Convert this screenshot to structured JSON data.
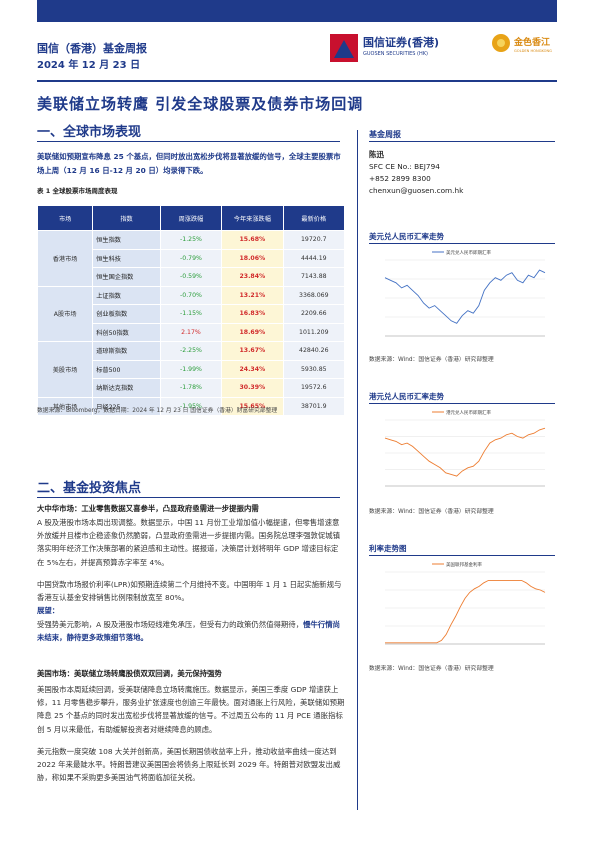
{
  "header": {
    "report_name": "国信（香港）基金周报",
    "date": "2024 年 12 月 23 日",
    "logo_cn": "国信证券(香港)",
    "logo_en": "GUOSEN SECURITIES (HK)",
    "logo2_cn": "金色香江",
    "logo2_en": "GOLDEN HONGKONG"
  },
  "title": "美联储立场转鹰 引发全球股票及债券市场回调",
  "section1": {
    "heading": "一、全球市场表现",
    "summary": "美联储如预期宣布降息 25 个基点，但同时放出宽松步伐将显著放缓的信号，全球主要股票市场上周（12 月 16 日-12 月 20 日）均录得下跌。",
    "table_caption": "表 1   全球股票市场周度表现",
    "table_headers": [
      "市场",
      "指数",
      "周涨跌幅",
      "今年来涨跌幅",
      "最新价格"
    ],
    "groups": [
      {
        "market": "香港市场",
        "rows": [
          {
            "index": "恒生指数",
            "week": "-1.25%",
            "ytd": "15.68%",
            "price": "19720.7"
          },
          {
            "index": "恒生科技",
            "week": "-0.79%",
            "ytd": "18.06%",
            "price": "4444.19"
          },
          {
            "index": "恒生国企指数",
            "week": "-0.59%",
            "ytd": "23.84%",
            "price": "7143.88"
          }
        ]
      },
      {
        "market": "A股市场",
        "rows": [
          {
            "index": "上证指数",
            "week": "-0.70%",
            "ytd": "13.21%",
            "price": "3368.069"
          },
          {
            "index": "创业板指数",
            "week": "-1.15%",
            "ytd": "16.83%",
            "price": "2209.66"
          },
          {
            "index": "科创50指数",
            "week": "2.17%",
            "ytd": "18.69%",
            "price": "1011.209"
          }
        ]
      },
      {
        "market": "美股市场",
        "rows": [
          {
            "index": "道琼斯指数",
            "week": "-2.25%",
            "ytd": "13.67%",
            "price": "42840.26"
          },
          {
            "index": "标普500",
            "week": "-1.99%",
            "ytd": "24.34%",
            "price": "5930.85"
          },
          {
            "index": "纳斯达克指数",
            "week": "-1.78%",
            "ytd": "30.39%",
            "price": "19572.6"
          }
        ]
      },
      {
        "market": "其他市场",
        "rows": [
          {
            "index": "日经225",
            "week": "-1.95%",
            "ytd": "15.65%",
            "price": "38701.9"
          }
        ]
      }
    ],
    "source": "数据来源：Bloomberg，数据日期：2024 年 12 月 23 日  国信证券（香港）财富研究部整理"
  },
  "section2": {
    "heading": "二、基金投资焦点",
    "p1_lead": "大中华市场：工业零售数据又喜参半，凸显政府亟需进一步提振内需",
    "p1": "A 股及港股市场本周出现调整。数据显示，中国 11 月份工业增加值小幅提速，但零售增速意外放缓并且楼市企稳迹象仍然脆弱，凸显政府亟需进一步提振内需。国务院总理李强敦促城镇落实明年经济工作决策部署的紧迫感和主动性。据报道，决策层计划将明年 GDP 增速目标定在 5%左右，并提高预算赤字率至 4%。",
    "p2": "中国贷款市场报价利率(LPR)如预期连续第二个月维持不变。中国明年 1 月 1 日起实施新规与香港互认基金安排销售比例限制放宽至 80%。",
    "outlook_label": "展望：",
    "p3_plain": "受强势美元影响，A 股及港股市场短线难免承压，但受有力的政策仍然值得期待，",
    "p3_hl": "慢牛行情尚未结束，静待更多政策细节落地。",
    "p4_lead": "美国市场：美联储立场转鹰股债双双回调，美元保持强势",
    "p4": "美国股市本周延续回调，受美联储降息立场转鹰施压。数据显示，美国三季度 GDP 增速获上修，11 月零售稳步攀升，服务业扩张速度也创逾三年最快。面对通胀上行风险，美联储如预期降息 25 个基点的同时发出宽松步伐将显著放缓的信号。不过周五公布的 11 月 PCE 通胀指标创 5 月以来最低，有助缓解投资者对继续降息的顾虑。",
    "p5": "美元指数一度突破 108 大关并创新高，美国长期国债收益率上升，推动收益率曲线一度达到 2022 年来最陡水平。特朗普建议美国国会将债务上限延长到 2029 年。特朗普对欧盟发出威胁，称如果不采购更多美国油气将面临加征关税。"
  },
  "sidebar": {
    "heading": "基金周报",
    "name": "陈迅",
    "sfc": "SFC CE No.: BEJ794",
    "phone": "+852 2899 8300",
    "email": "chenxun@guosen.com.hk"
  },
  "charts": {
    "c1_title": "美元兑人民币汇率走势",
    "c2_title": "港元兑人民币汇率走势",
    "c3_title": "利率走势图",
    "c1_legend": "美元兑人民币即期汇率",
    "c2_legend": "港元兑人民币即期汇率",
    "c3_legend": "美国联邦基金利率",
    "source": "数据来源：Wind：国信证券（香港）研究部整理"
  },
  "chart_data": [
    {
      "type": "line",
      "title": "美元兑人民币汇率走势",
      "series": [
        {
          "name": "美元兑人民币即期汇率",
          "values": [
            7.23,
            7.22,
            7.21,
            7.19,
            7.2,
            7.18,
            7.16,
            7.13,
            7.11,
            7.12,
            7.1,
            7.08,
            7.06,
            7.05,
            7.08,
            7.1,
            7.09,
            7.12,
            7.18,
            7.21,
            7.23,
            7.22,
            7.24,
            7.25,
            7.22,
            7.21,
            7.24,
            7.23,
            7.26,
            7.25
          ]
        }
      ],
      "ylim": [
        7.0,
        7.3
      ]
    },
    {
      "type": "line",
      "title": "港元兑人民币汇率走势",
      "series": [
        {
          "name": "港元兑人民币即期汇率",
          "values": [
            0.929,
            0.928,
            0.927,
            0.925,
            0.926,
            0.924,
            0.921,
            0.918,
            0.915,
            0.913,
            0.911,
            0.908,
            0.907,
            0.906,
            0.909,
            0.911,
            0.912,
            0.915,
            0.921,
            0.926,
            0.928,
            0.929,
            0.931,
            0.932,
            0.93,
            0.929,
            0.931,
            0.932,
            0.934,
            0.935
          ]
        }
      ],
      "ylim": [
        0.9,
        0.94
      ]
    },
    {
      "type": "line",
      "title": "利率走势图",
      "series": [
        {
          "name": "美国联邦基金利率",
          "values": [
            0.1,
            0.1,
            0.1,
            0.1,
            0.1,
            0.1,
            0.1,
            0.1,
            0.1,
            0.1,
            0.1,
            0.1,
            0.3,
            0.8,
            1.6,
            2.3,
            3.1,
            3.8,
            4.3,
            4.6,
            4.8,
            5.1,
            5.3,
            5.3,
            5.3,
            5.3,
            5.3,
            5.3,
            5.3,
            5.3,
            5.1,
            4.8,
            4.6,
            4.5,
            4.3
          ]
        }
      ],
      "ylim": [
        0,
        6
      ]
    }
  ]
}
